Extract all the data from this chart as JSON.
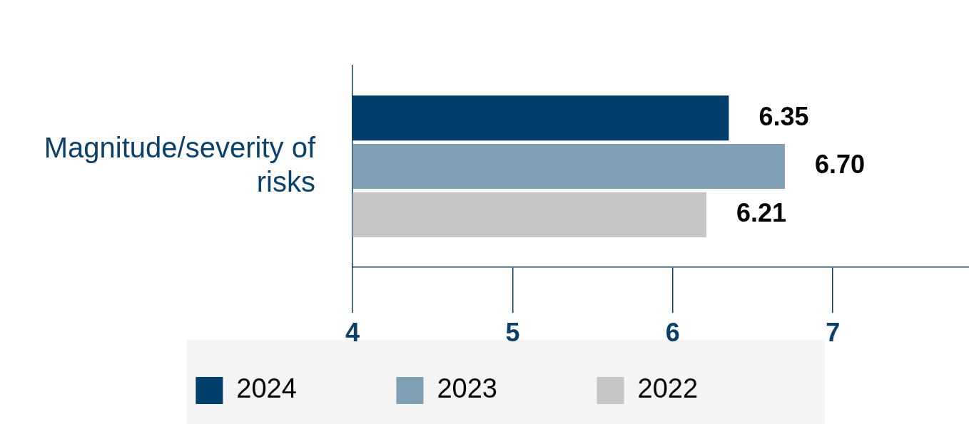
{
  "chart_data": {
    "type": "bar",
    "orientation": "horizontal",
    "categories": [
      "Magnitude/severity of risks"
    ],
    "series": [
      {
        "name": "2024",
        "color": "#003f6b",
        "values": [
          6.35
        ],
        "value_labels": [
          "6.35"
        ]
      },
      {
        "name": "2023",
        "color": "#7f9fb5",
        "values": [
          6.7
        ],
        "value_labels": [
          "6.70"
        ]
      },
      {
        "name": "2022",
        "color": "#c6c6c6",
        "values": [
          6.21
        ],
        "value_labels": [
          "6.21"
        ]
      }
    ],
    "xlim": [
      4,
      7.85
    ],
    "xticks": [
      4,
      5,
      6,
      7
    ],
    "legend": "bottom"
  }
}
